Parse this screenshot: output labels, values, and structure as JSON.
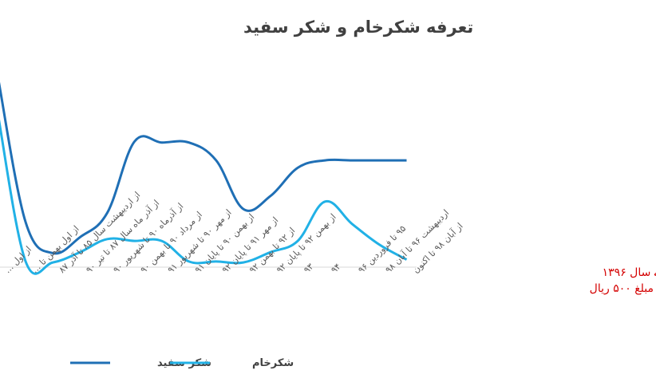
{
  "chart_data": {
    "type": "line",
    "title": "تعرفه شکرخام و شکر سفید",
    "categories": [
      "از اول ...",
      "از اول بهمن تا ...",
      "از اردیبهشت سال ۸۵ تا آذر ۸۷",
      "از آذر ماه سال ۸۷ تا تیر ۹۰",
      "از آذرماه ۹۰ تا شهریور ۹۰",
      "از مرداد ۹۰ تا بهمن ۹۰",
      "از مهر ۹۰ تا شهریور ۹۱",
      "از بهمن ۹۰ تا پایان ۹۱",
      "از مهر ۹۱ تا پایان ۹۲",
      "از ۹۲ تا بهمن ۹۲",
      "از بهمن ۹۲ تا پایان ۹۲",
      "۹۳",
      "۹۴",
      "۹۵ تا فروردین ۹۶",
      "اردیبهشت ۹۶ تا آبان ۹۸",
      "از آبان ۹۸ تا اکنون"
    ],
    "series": [
      {
        "name": "شکر سفید",
        "color": "#1f6fb5",
        "values": [
          100,
          24,
          7.5,
          16,
          29,
          67,
          66.5,
          66.5,
          57,
          31,
          38,
          53,
          57,
          57,
          57,
          57
        ]
      },
      {
        "name": "شکرخام",
        "color": "#21b1e6",
        "values": [
          80,
          3,
          2.5,
          8,
          15,
          14,
          14,
          3,
          3,
          2.5,
          8,
          14,
          35,
          23,
          12,
          4
        ]
      }
    ],
    "ylim": [
      0,
      100
    ],
    "grid": false,
    "legend_position": "bottom"
  },
  "side_note": {
    "line1": "ے سال ۱۳۹۶",
    "line2": "، مبلغ ۵۰۰ ریال"
  }
}
